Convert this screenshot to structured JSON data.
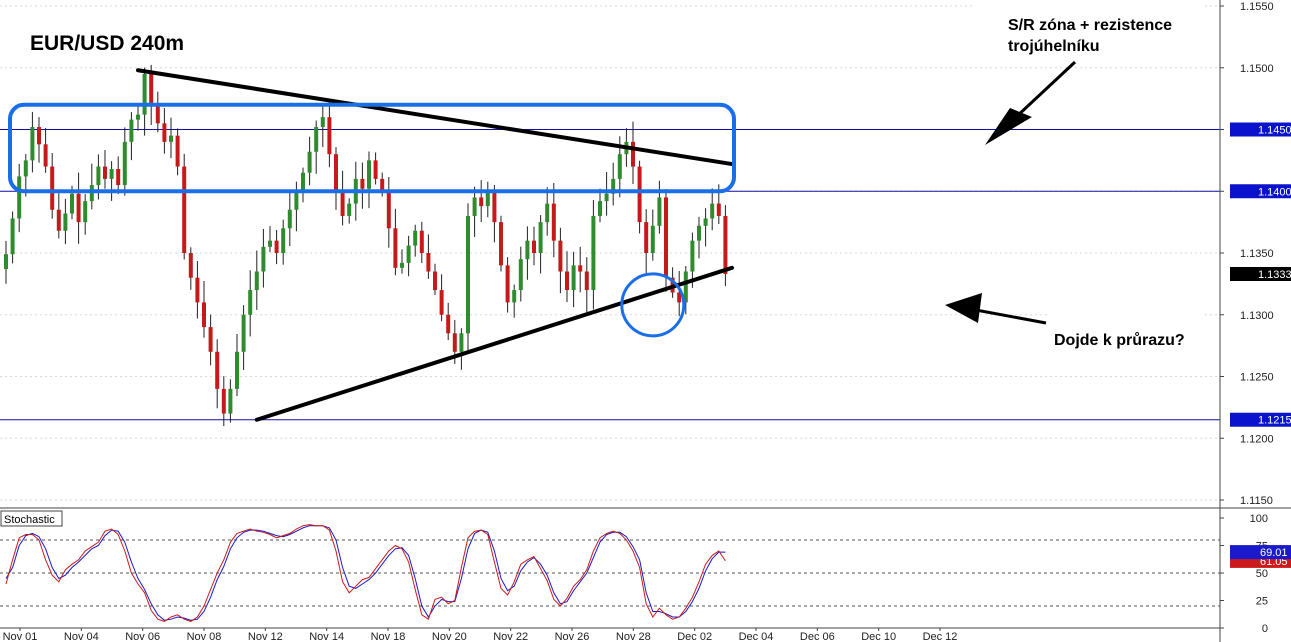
{
  "chart_data": [
    {
      "type": "candlestick",
      "title": "EUR/USD 240m",
      "ylim": [
        1.1145,
        1.1555
      ],
      "y_ticks": [
        "1.1550",
        "1.1500",
        "1.1450",
        "1.1400",
        "1.1350",
        "1.1300",
        "1.1250",
        "1.1200",
        "1.1150"
      ],
      "x_tick_labels": [
        "Nov 01",
        "Nov 04",
        "Nov 06",
        "Nov 08",
        "Nov 12",
        "Nov 14",
        "Nov 18",
        "Nov 20",
        "Nov 22",
        "Nov 26",
        "Nov 28",
        "Dec 02",
        "Dec 04",
        "Dec 06",
        "Dec 10",
        "Dec 12"
      ],
      "price_tags": [
        {
          "label": "1.1450",
          "value": 1.145,
          "color": "#0a12cc"
        },
        {
          "label": "1.1400",
          "value": 1.14,
          "color": "#0a12cc"
        },
        {
          "label": "1.1333",
          "value": 1.1333,
          "color": "#000000"
        },
        {
          "label": "1.1215",
          "value": 1.1215,
          "color": "#0a12cc"
        }
      ],
      "horizontal_levels": [
        1.145,
        1.14,
        1.1215
      ],
      "closes": [
        1.1349,
        1.1378,
        1.1412,
        1.1425,
        1.1452,
        1.1438,
        1.142,
        1.1385,
        1.1368,
        1.1382,
        1.1398,
        1.1375,
        1.1392,
        1.1405,
        1.142,
        1.141,
        1.1418,
        1.1405,
        1.144,
        1.1458,
        1.1462,
        1.1495,
        1.147,
        1.1455,
        1.144,
        1.1445,
        1.142,
        1.135,
        1.133,
        1.131,
        1.129,
        1.127,
        1.124,
        1.122,
        1.124,
        1.127,
        1.13,
        1.132,
        1.1335,
        1.1355,
        1.136,
        1.135,
        1.137,
        1.1385,
        1.14,
        1.1415,
        1.1432,
        1.1452,
        1.146,
        1.143,
        1.14,
        1.138,
        1.139,
        1.141,
        1.1402,
        1.1425,
        1.141,
        1.14,
        1.137,
        1.1338,
        1.1342,
        1.1356,
        1.1368,
        1.135,
        1.1335,
        1.132,
        1.13,
        1.1285,
        1.127,
        1.1285,
        1.138,
        1.1395,
        1.1388,
        1.14,
        1.1375,
        1.134,
        1.131,
        1.132,
        1.1345,
        1.136,
        1.135,
        1.1375,
        1.139,
        1.136,
        1.1335,
        1.132,
        1.134,
        1.1335,
        1.132,
        1.138,
        1.1392,
        1.1398,
        1.141,
        1.143,
        1.144,
        1.142,
        1.1375,
        1.135,
        1.1372,
        1.1395,
        1.133,
        1.1318,
        1.131,
        1.1335,
        1.136,
        1.1372,
        1.1378,
        1.139,
        1.138,
        1.1333
      ],
      "annotations": [
        {
          "id": "sr_zone",
          "text_lines": [
            "S/R zóna + rezistence",
            "trojúhelníku"
          ]
        },
        {
          "id": "question",
          "text_lines": [
            "Dojde k průrazu?"
          ]
        }
      ],
      "trendlines": [
        {
          "name": "resistance",
          "from": {
            "bar": 20,
            "price": 1.1498
          },
          "to": {
            "bar": 110,
            "price": 1.1422
          }
        },
        {
          "name": "support",
          "from": {
            "bar": 38,
            "price": 1.1215
          },
          "to": {
            "bar": 110,
            "price": 1.1338
          }
        }
      ],
      "zone": {
        "from_bar": 0,
        "to_bar": 110,
        "price_top": 1.147,
        "price_bottom": 1.14,
        "color": "#1a6fe8"
      },
      "circle": {
        "bar": 98,
        "price": 1.1308,
        "color": "#1a6fe8"
      },
      "colors": {
        "up": "#2e8b2e",
        "down": "#c61a1a",
        "level": "#1010a8",
        "grid": "#d8d8d8"
      }
    },
    {
      "type": "line",
      "title": "Stochastic",
      "ylim": [
        0,
        100
      ],
      "y_ticks": [
        "100",
        "75",
        "50",
        "25",
        "0"
      ],
      "levels": [
        80,
        50,
        20
      ],
      "series": [
        {
          "name": "%K",
          "color": "#cc1a1a",
          "tag": "61.05",
          "values": [
            40,
            62,
            82,
            85,
            85,
            80,
            62,
            48,
            42,
            53,
            58,
            62,
            70,
            74,
            78,
            88,
            90,
            85,
            70,
            50,
            40,
            32,
            16,
            8,
            6,
            10,
            12,
            8,
            6,
            10,
            20,
            35,
            50,
            62,
            78,
            86,
            88,
            90,
            88,
            87,
            85,
            82,
            84,
            86,
            90,
            93,
            94,
            93,
            93,
            89,
            70,
            42,
            32,
            38,
            44,
            46,
            54,
            62,
            70,
            75,
            72,
            60,
            35,
            12,
            8,
            26,
            28,
            22,
            25,
            55,
            82,
            88,
            89,
            85,
            60,
            36,
            30,
            42,
            58,
            62,
            65,
            54,
            43,
            26,
            20,
            27,
            38,
            44,
            53,
            70,
            82,
            86,
            88,
            86,
            80,
            70,
            55,
            22,
            10,
            18,
            12,
            8,
            10,
            18,
            28,
            42,
            58,
            66,
            70,
            61
          ]
        },
        {
          "name": "%D",
          "color": "#1a1acc",
          "tag": "69.01",
          "values": [
            45,
            55,
            75,
            84,
            86,
            83,
            72,
            55,
            45,
            48,
            55,
            60,
            66,
            72,
            75,
            84,
            89,
            88,
            78,
            60,
            45,
            35,
            22,
            12,
            7,
            8,
            10,
            9,
            7,
            8,
            15,
            28,
            44,
            56,
            72,
            82,
            87,
            89,
            89,
            88,
            86,
            84,
            83,
            85,
            88,
            91,
            93,
            93,
            93,
            91,
            80,
            55,
            38,
            36,
            40,
            44,
            50,
            58,
            66,
            72,
            73,
            66,
            45,
            20,
            10,
            20,
            26,
            24,
            24,
            45,
            72,
            86,
            89,
            87,
            70,
            45,
            34,
            38,
            52,
            60,
            64,
            58,
            48,
            32,
            22,
            24,
            34,
            42,
            50,
            64,
            78,
            85,
            87,
            87,
            83,
            74,
            62,
            32,
            15,
            15,
            13,
            10,
            10,
            15,
            24,
            36,
            52,
            63,
            69,
            69
          ]
        }
      ]
    }
  ]
}
